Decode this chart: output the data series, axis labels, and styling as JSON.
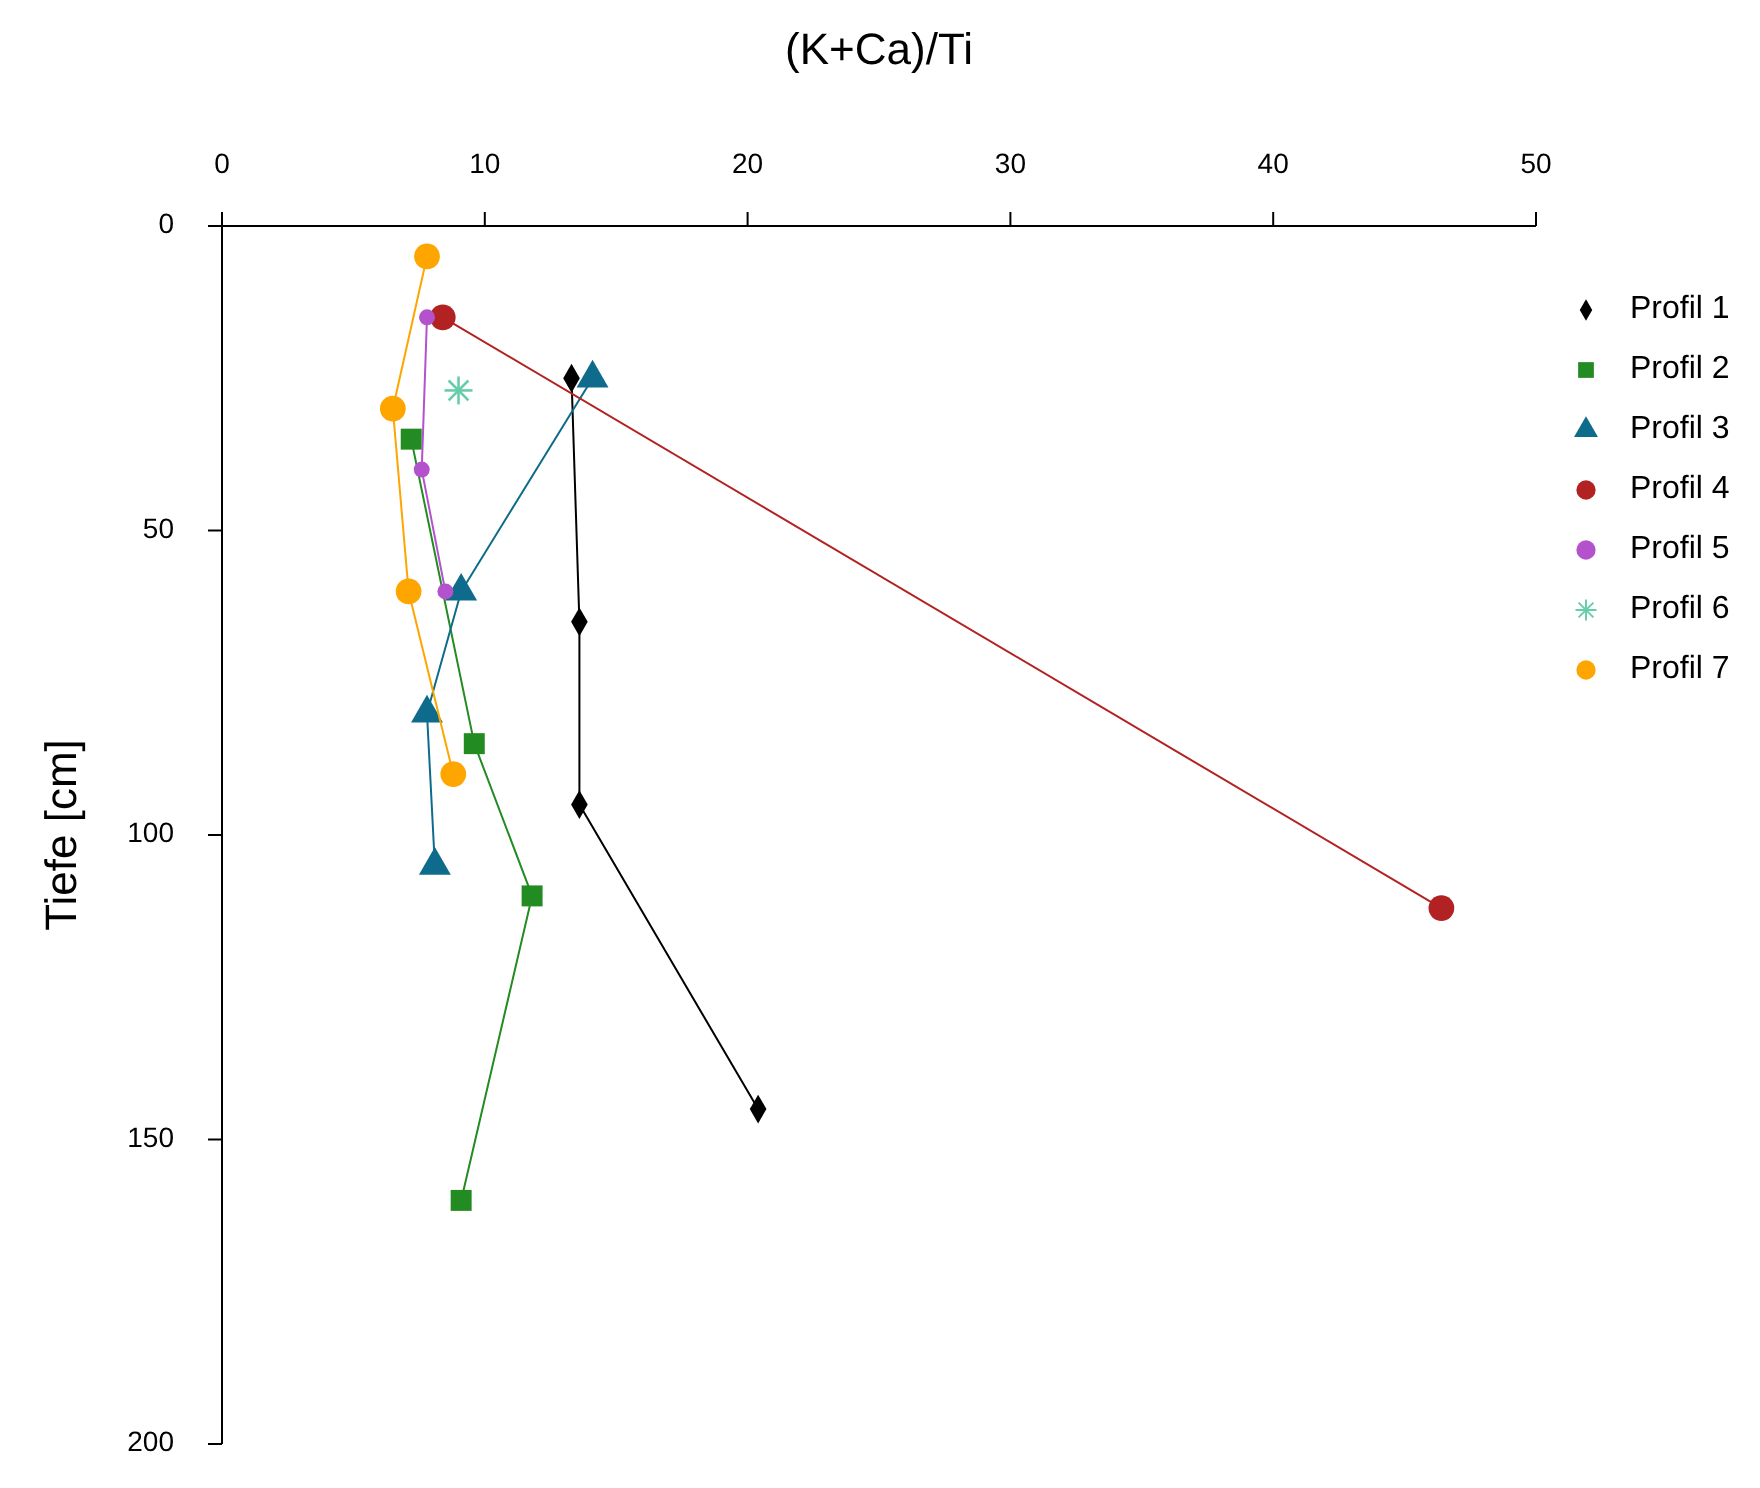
{
  "chart_data": {
    "type": "line",
    "xlabel": "(K+Ca)/Ti",
    "ylabel": "Tiefe [cm]",
    "xlim": [
      0,
      50
    ],
    "xticks": [
      0,
      10,
      20,
      30,
      40,
      50
    ],
    "ylim": [
      200,
      0
    ],
    "yticks": [
      0,
      50,
      100,
      150,
      200
    ],
    "grid": false,
    "legend": "right",
    "series": [
      {
        "name": "Profil 1",
        "color": "#000000",
        "marker": "diamond",
        "x": [
          13.3,
          13.6,
          13.6,
          20.4
        ],
        "values": [
          25,
          65,
          95,
          145
        ]
      },
      {
        "name": "Profil 2",
        "color": "#228b22",
        "marker": "square",
        "x": [
          7.2,
          9.6,
          11.8,
          9.1
        ],
        "values": [
          35,
          85,
          110,
          160
        ]
      },
      {
        "name": "Profil 3",
        "color": "#0e6b8c",
        "marker": "triangle",
        "x": [
          14.1,
          9.1,
          7.8,
          8.1
        ],
        "values": [
          25,
          60,
          80,
          105
        ]
      },
      {
        "name": "Profil 4",
        "color": "#b22222",
        "marker": "circle",
        "x": [
          8.4,
          46.4
        ],
        "values": [
          15,
          112
        ]
      },
      {
        "name": "Profil 5",
        "color": "#b452cd",
        "marker": "circle",
        "x": [
          7.8,
          7.6,
          8.5
        ],
        "values": [
          15,
          40,
          60
        ]
      },
      {
        "name": "Profil 6",
        "color": "#66cdaa",
        "marker": "cross",
        "x": [
          9.0
        ],
        "values": [
          27
        ]
      },
      {
        "name": "Profil 7",
        "color": "#ffa500",
        "marker": "circle",
        "x": [
          7.8,
          6.5,
          7.1,
          8.8
        ],
        "values": [
          5,
          30,
          60,
          90
        ]
      }
    ]
  }
}
